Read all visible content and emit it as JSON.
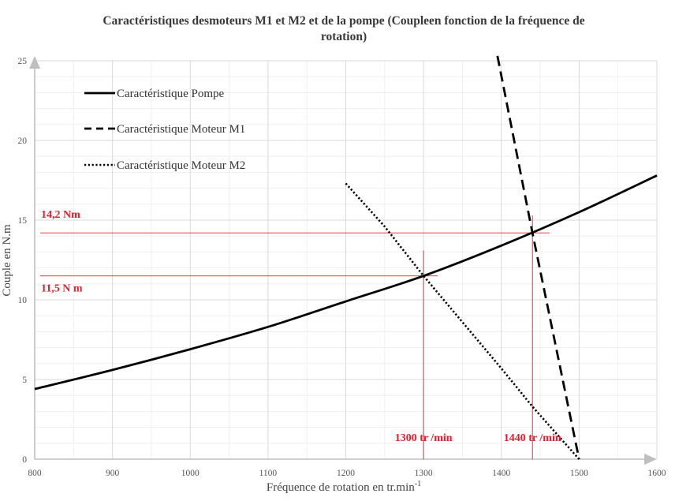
{
  "chart_data": {
    "type": "line",
    "title_lines": [
      "Caractéristiques desmoteurs M1 et M2 et de la pompe (Coupleen fonction de la fréquence de",
      "rotation)"
    ],
    "xlabel": "Fréquence de rotation  en tr.min",
    "xlabel_sup": "-1",
    "ylabel": "Couple en N.m",
    "xlim": [
      800,
      1600
    ],
    "ylim": [
      0,
      25
    ],
    "x_ticks": [
      800,
      900,
      1000,
      1100,
      1200,
      1300,
      1400,
      1500,
      1600
    ],
    "y_ticks": [
      0,
      5,
      10,
      15,
      20,
      25
    ],
    "grid": true,
    "legend_position": "top-left",
    "series": [
      {
        "name": "Caractéristique  Pompe",
        "style": "solid",
        "color": "#000000",
        "x": [
          800,
          900,
          1000,
          1100,
          1200,
          1300,
          1400,
          1500,
          1600
        ],
        "y": [
          4.4,
          5.6,
          6.9,
          8.3,
          9.9,
          11.5,
          13.4,
          15.5,
          17.8
        ]
      },
      {
        "name": "Caractéristique  Moteur M1",
        "style": "dashed",
        "color": "#000000",
        "x": [
          1395,
          1440,
          1500
        ],
        "y": [
          25.3,
          14.2,
          0
        ]
      },
      {
        "name": "Caractéristique  Moteur M2",
        "style": "dotted",
        "color": "#000000",
        "x": [
          1200,
          1250,
          1300,
          1350,
          1400,
          1440,
          1500
        ],
        "y": [
          17.3,
          14.6,
          11.5,
          8.6,
          5.7,
          3.3,
          0
        ]
      }
    ],
    "annotations": [
      {
        "text": "14,2 Nm",
        "y": 14.2,
        "color": "#e0202e"
      },
      {
        "text": "11,5 N m",
        "y": 11.5,
        "color": "#e0202e"
      },
      {
        "text": "1300 tr /min",
        "x": 1300,
        "color": "#e0202e"
      },
      {
        "text": "1440 tr /min",
        "x": 1440,
        "color": "#e0202e"
      }
    ],
    "colors": {
      "grid": "#d9d9d9",
      "axis": "#bfbfbf",
      "annotation": "#e0202e",
      "series": "#000000"
    }
  }
}
